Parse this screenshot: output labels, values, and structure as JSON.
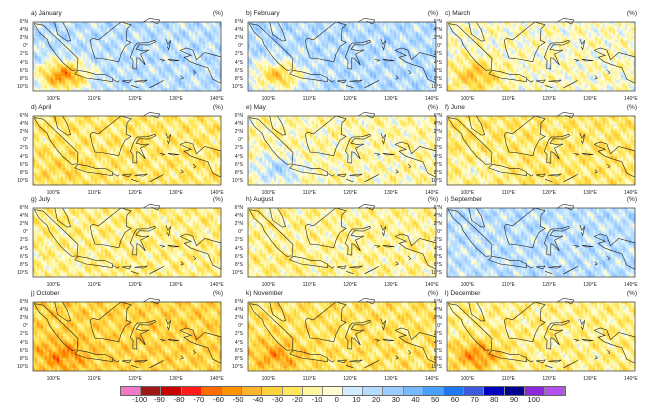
{
  "unit": "(%)",
  "lon_ticks": [
    "100°E",
    "110°E",
    "120°E",
    "130°E",
    "140°E"
  ],
  "lat_ticks": [
    "6°N",
    "4°N",
    "2°N",
    "0°",
    "2°S",
    "4°S",
    "6°S",
    "8°S",
    "10°S"
  ],
  "panels": [
    {
      "title": "a) January",
      "mean_anomaly": 12,
      "sw_anomaly": -55
    },
    {
      "title": "b) February",
      "mean_anomaly": 14,
      "sw_anomaly": -35
    },
    {
      "title": "c) March",
      "mean_anomaly": -8,
      "sw_anomaly": -40
    },
    {
      "title": "d) April",
      "mean_anomaly": -22,
      "sw_anomaly": -30
    },
    {
      "title": "e) May",
      "mean_anomaly": -12,
      "sw_anomaly": 15
    },
    {
      "title": "f) June",
      "mean_anomaly": -22,
      "sw_anomaly": -10
    },
    {
      "title": "g) July",
      "mean_anomaly": -18,
      "sw_anomaly": -15
    },
    {
      "title": "h) August",
      "mean_anomaly": -15,
      "sw_anomaly": -20
    },
    {
      "title": "i) September",
      "mean_anomaly": 12,
      "sw_anomaly": 10
    },
    {
      "title": "j) October",
      "mean_anomaly": -32,
      "sw_anomaly": -55
    },
    {
      "title": "k) November",
      "mean_anomaly": -25,
      "sw_anomaly": -50
    },
    {
      "title": "l) December",
      "mean_anomaly": -18,
      "sw_anomaly": -55
    }
  ],
  "colorbar": {
    "labels": [
      "-100",
      "-90",
      "-80",
      "-70",
      "-60",
      "-50",
      "-40",
      "-30",
      "-20",
      "-10",
      "0",
      "10",
      "20",
      "30",
      "40",
      "50",
      "60",
      "70",
      "80",
      "90",
      "100"
    ],
    "colors": [
      "#f07ac8",
      "#a01818",
      "#c80000",
      "#ff1a1a",
      "#ff6a00",
      "#ff9400",
      "#ffb430",
      "#ffd23c",
      "#ffe65a",
      "#fff5a0",
      "#fffcd2",
      "#d2ecff",
      "#b4dcff",
      "#9ccbff",
      "#78b8ff",
      "#4aa0ff",
      "#1e78f0",
      "#3c5adc",
      "#0000c0",
      "#00008c",
      "#8c28dc",
      "#b450f0"
    ]
  }
}
